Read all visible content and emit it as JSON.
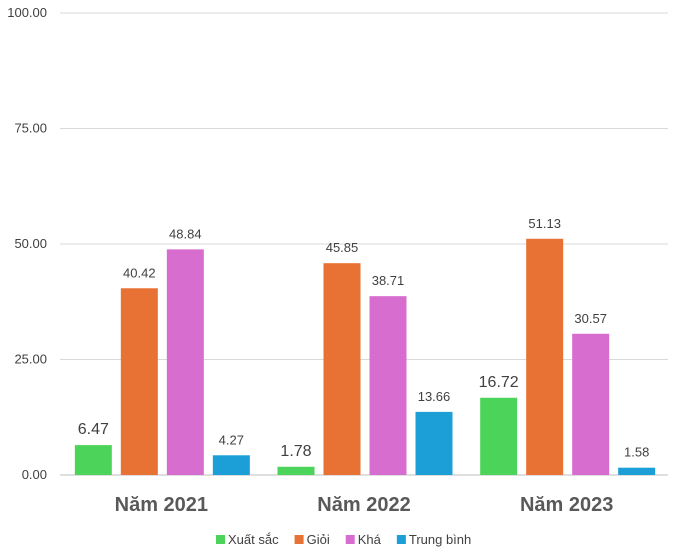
{
  "chart_data": {
    "type": "bar",
    "categories": [
      "Năm 2021",
      "Năm 2022",
      "Năm 2023"
    ],
    "series": [
      {
        "name": "Xuất sắc",
        "color": "#4cd45a",
        "values": [
          6.47,
          1.78,
          16.72
        ]
      },
      {
        "name": "Giỏi",
        "color": "#e87233",
        "values": [
          40.42,
          45.85,
          51.13
        ]
      },
      {
        "name": "Khá",
        "color": "#d76ecf",
        "values": [
          48.84,
          38.71,
          30.57
        ]
      },
      {
        "name": "Trung bình",
        "color": "#1c9fd6",
        "values": [
          4.27,
          13.66,
          1.58
        ]
      }
    ],
    "data_labels": [
      [
        "6.47",
        "1.78",
        "16.72"
      ],
      [
        "40.42",
        "45.85",
        "51.13"
      ],
      [
        "48.84",
        "38.71",
        "30.57"
      ],
      [
        "4.27",
        "13.66",
        "1.58"
      ]
    ],
    "y_ticks": [
      "0.00",
      "25.00",
      "50.00",
      "75.00",
      "100.00"
    ],
    "ylim": [
      0,
      100
    ],
    "grid": true,
    "legend_position": "bottom",
    "title": "",
    "xlabel": "",
    "ylabel": ""
  }
}
